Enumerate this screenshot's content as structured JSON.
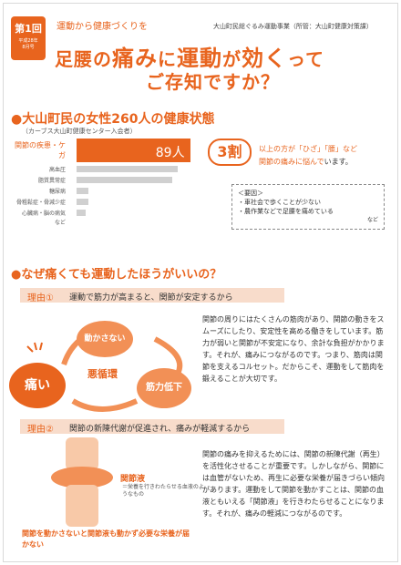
{
  "header": {
    "badge_issue": "第1回",
    "badge_date": "平成28年\n8月号",
    "tagline": "運動から健康づくりを",
    "sponsor": "大山町民総ぐるみ運動事業（所管：大山町健康対策課）",
    "headline_a": "足腰の",
    "headline_b": "痛み",
    "headline_c": "に",
    "headline_d": "運動",
    "headline_e": "が",
    "headline_f": "効く",
    "headline_g": "って",
    "headline_line2": "ご存知ですか？"
  },
  "section1": {
    "title": "●大山町民の女性260人の健康状態",
    "subtitle": "（カーブス大山町健康センター入会者）",
    "wari": "3割",
    "wari_text_a": "以上の方が「ひざ」「腰」など",
    "wari_text_b": "関節の痛みに悩んで",
    "wari_text_c": "います。",
    "yoin_title": "＜要因＞",
    "yoin_1": "・車社会で歩くことが少ない",
    "yoin_2": "・農作業などで足腰を痛めている",
    "yoin_etc": "など"
  },
  "chart_data": {
    "type": "bar",
    "categories": [
      "関節の疾患・ケガ",
      "高血圧",
      "脂質異常症",
      "糖尿病",
      "骨粗鬆症・骨減少症",
      "心臓病・脳の病気",
      "など"
    ],
    "values": [
      89,
      79,
      75,
      9,
      9,
      7,
      0
    ],
    "value_labels": [
      "89人",
      "",
      "",
      "",
      "",
      "",
      ""
    ],
    "highlight_color": "#e8641e",
    "base_color": "#d0d0d0"
  },
  "section2": {
    "title": "●なぜ痛くても運動したほうがいいの？",
    "reason1_label": "理由①",
    "reason1_text": "運動で筋力が高まると、関節が安定するから",
    "cycle_itai": "痛い",
    "cycle_ugokasanai": "動かさない",
    "cycle_kinryoku": "筋力低下",
    "cycle_center": "悪循環",
    "para1": "関節の周りにはたくさんの筋肉があり、関節の動きをスムーズにしたり、安定性を高める働きをしています。筋力が弱いと関節が不安定になり、余計な負担がかかります。それが、痛みにつながるのです。つまり、筋肉は関節を支えるコルセット。だからこそ、運動をして筋肉を鍛えることが大切です。",
    "reason2_label": "理由②",
    "reason2_text": "関節の新陳代謝が促進され、痛みが軽減するから",
    "kansetsueki_label": "関節液",
    "kansetsueki_note": "＝栄養を行きわたらせる血液のようなもの",
    "bottom_caption": "関節を動かさないと関節液も動かず必要な栄養が届かない",
    "para2": "関節の痛みを抑えるためには、関節の新陳代謝（再生）を活性化させることが重要です。しかしながら、関節には血管がないため、再生に必要な栄養が届きづらい傾向があります。運動をして関節を動かすことは、関節の血液ともいえる「関節液」を行きわたらせることになります。それが、痛みの軽減につながるのです。"
  }
}
